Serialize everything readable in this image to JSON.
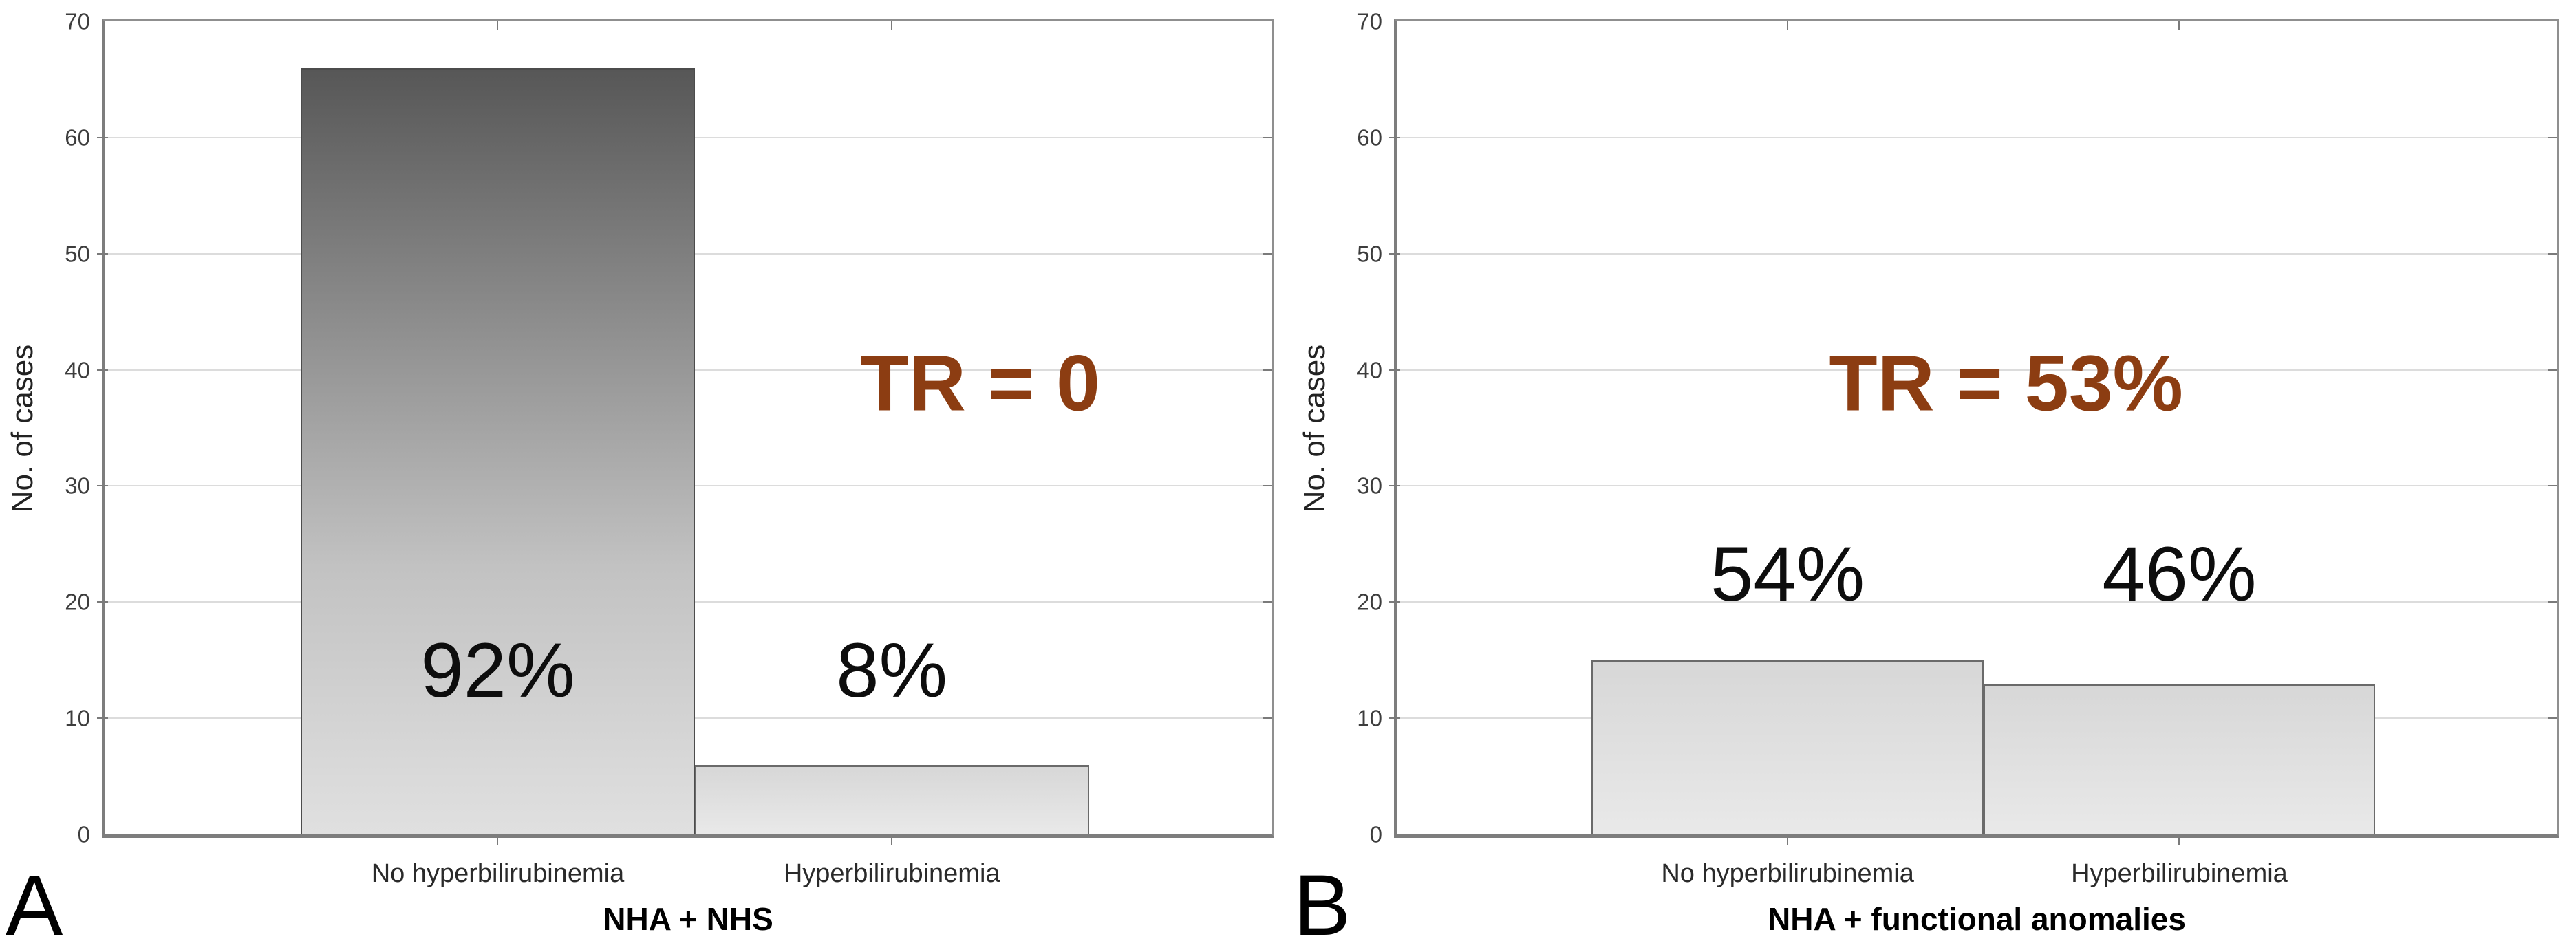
{
  "figure": {
    "description": "Two-panel bar chart figure comparing hyperbilirubinemia case counts",
    "background": "#ffffff"
  },
  "colors": {
    "annotation_text": "#8c3d12",
    "bar_dark_top": "#575757",
    "bar_dark_mid": "#c2c2c2",
    "bar_dark_bottom": "#e0e0e0",
    "bar_light_top": "#d7d7d7",
    "bar_light_bottom": "#e9e9e9",
    "axis_line": "#7d7d7d",
    "gridline": "#dcdcdc",
    "label_text": "#0d0d0d"
  },
  "chart_data": [
    {
      "type": "bar",
      "panel_label": "A",
      "title": "",
      "xlabel": "NHA + NHS",
      "ylabel": "No. of cases",
      "categories": [
        "No hyperbilirubinemia",
        "Hyperbilirubinemia"
      ],
      "values": [
        66,
        6
      ],
      "bar_value_labels": [
        "92%",
        "8%"
      ],
      "bar_fill": [
        "dark-gradient",
        "light"
      ],
      "annotation": "TR = 0",
      "ylim": [
        0,
        70
      ],
      "yticks": [
        0,
        10,
        20,
        30,
        40,
        50,
        60,
        70
      ],
      "grid": "horizontal gridlines every 10",
      "legend": "none"
    },
    {
      "type": "bar",
      "panel_label": "B",
      "title": "",
      "xlabel": "NHA + functional anomalies",
      "ylabel": "No. of cases",
      "categories": [
        "No hyperbilirubinemia",
        "Hyperbilirubinemia"
      ],
      "values": [
        15,
        13
      ],
      "bar_value_labels": [
        "54%",
        "46%"
      ],
      "bar_fill": [
        "light",
        "light"
      ],
      "annotation": "TR = 53%",
      "ylim": [
        0,
        70
      ],
      "yticks": [
        0,
        10,
        20,
        30,
        40,
        50,
        60,
        70
      ],
      "grid": "horizontal gridlines every 10",
      "legend": "none"
    }
  ]
}
